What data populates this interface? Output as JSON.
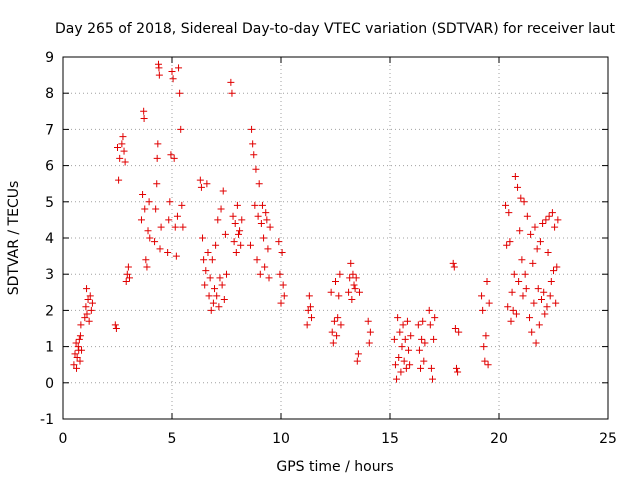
{
  "chart_data": {
    "type": "scatter",
    "title": "Day 265 of 2018, Sidereal Day-to-day VTEC variation (SDTVAR) for receiver laut",
    "xlabel": "GPS time / hours",
    "ylabel": "SDTVAR / TECUs",
    "xlim": [
      0,
      25
    ],
    "ylim": [
      -1,
      9
    ],
    "xticks": [
      0,
      5,
      10,
      15,
      20,
      25
    ],
    "yticks": [
      -1,
      0,
      1,
      2,
      3,
      4,
      5,
      6,
      7,
      8,
      9
    ],
    "grid": true,
    "marker": "+",
    "color": "#e00000",
    "series": [
      {
        "name": "SDTVAR",
        "points": [
          [
            0.5,
            0.5
          ],
          [
            0.55,
            0.8
          ],
          [
            0.6,
            1.1
          ],
          [
            0.62,
            0.4
          ],
          [
            0.65,
            0.7
          ],
          [
            0.7,
            1.0
          ],
          [
            0.72,
            0.9
          ],
          [
            0.75,
            1.2
          ],
          [
            0.78,
            0.6
          ],
          [
            0.8,
            1.3
          ],
          [
            0.82,
            1.6
          ],
          [
            0.85,
            0.9
          ],
          [
            1.0,
            1.8
          ],
          [
            1.05,
            2.1
          ],
          [
            1.08,
            2.6
          ],
          [
            1.1,
            1.9
          ],
          [
            1.15,
            2.3
          ],
          [
            1.2,
            1.7
          ],
          [
            1.25,
            2.4
          ],
          [
            1.3,
            2.0
          ],
          [
            1.35,
            2.2
          ],
          [
            2.4,
            1.6
          ],
          [
            2.45,
            1.5
          ],
          [
            2.5,
            6.5
          ],
          [
            2.55,
            5.6
          ],
          [
            2.6,
            6.2
          ],
          [
            2.7,
            6.6
          ],
          [
            2.75,
            6.8
          ],
          [
            2.8,
            6.4
          ],
          [
            2.85,
            6.1
          ],
          [
            2.9,
            2.8
          ],
          [
            2.95,
            3.0
          ],
          [
            3.0,
            3.2
          ],
          [
            3.05,
            2.9
          ],
          [
            3.6,
            4.5
          ],
          [
            3.65,
            5.2
          ],
          [
            3.7,
            7.5
          ],
          [
            3.72,
            7.3
          ],
          [
            3.75,
            4.8
          ],
          [
            3.8,
            3.4
          ],
          [
            3.85,
            3.2
          ],
          [
            3.9,
            4.2
          ],
          [
            3.95,
            5.0
          ],
          [
            3.98,
            4.0
          ],
          [
            4.2,
            3.9
          ],
          [
            4.25,
            4.8
          ],
          [
            4.3,
            5.5
          ],
          [
            4.32,
            6.2
          ],
          [
            4.35,
            6.6
          ],
          [
            4.38,
            8.8
          ],
          [
            4.4,
            8.7
          ],
          [
            4.42,
            8.5
          ],
          [
            4.45,
            3.7
          ],
          [
            4.5,
            4.3
          ],
          [
            4.8,
            3.6
          ],
          [
            4.85,
            4.5
          ],
          [
            4.9,
            5.0
          ],
          [
            4.95,
            6.3
          ],
          [
            5.0,
            8.6
          ],
          [
            5.05,
            8.4
          ],
          [
            5.1,
            6.2
          ],
          [
            5.15,
            4.3
          ],
          [
            5.2,
            3.5
          ],
          [
            5.25,
            4.6
          ],
          [
            5.3,
            8.7
          ],
          [
            5.35,
            8.0
          ],
          [
            5.4,
            7.0
          ],
          [
            5.45,
            4.9
          ],
          [
            5.5,
            4.3
          ],
          [
            6.3,
            5.6
          ],
          [
            6.35,
            5.4
          ],
          [
            6.4,
            4.0
          ],
          [
            6.45,
            3.4
          ],
          [
            6.5,
            2.7
          ],
          [
            6.55,
            3.1
          ],
          [
            6.6,
            5.5
          ],
          [
            6.65,
            3.6
          ],
          [
            6.7,
            2.4
          ],
          [
            6.75,
            2.9
          ],
          [
            6.8,
            2.0
          ],
          [
            6.85,
            3.4
          ],
          [
            6.9,
            2.2
          ],
          [
            6.95,
            2.6
          ],
          [
            7.0,
            3.8
          ],
          [
            7.05,
            2.4
          ],
          [
            7.1,
            4.5
          ],
          [
            7.15,
            2.1
          ],
          [
            7.2,
            2.9
          ],
          [
            7.25,
            4.8
          ],
          [
            7.3,
            2.7
          ],
          [
            7.35,
            5.3
          ],
          [
            7.4,
            2.3
          ],
          [
            7.45,
            4.1
          ],
          [
            7.5,
            3.0
          ],
          [
            7.7,
            8.3
          ],
          [
            7.75,
            8.0
          ],
          [
            7.8,
            4.6
          ],
          [
            7.85,
            3.9
          ],
          [
            7.9,
            4.4
          ],
          [
            7.95,
            3.6
          ],
          [
            8.0,
            4.9
          ],
          [
            8.05,
            4.1
          ],
          [
            8.1,
            4.2
          ],
          [
            8.15,
            3.8
          ],
          [
            8.2,
            4.5
          ],
          [
            8.6,
            3.8
          ],
          [
            8.65,
            7.0
          ],
          [
            8.7,
            6.6
          ],
          [
            8.75,
            6.3
          ],
          [
            8.8,
            4.9
          ],
          [
            8.85,
            5.9
          ],
          [
            8.9,
            3.4
          ],
          [
            8.95,
            4.6
          ],
          [
            9.0,
            5.5
          ],
          [
            9.05,
            3.0
          ],
          [
            9.1,
            4.4
          ],
          [
            9.15,
            4.9
          ],
          [
            9.2,
            4.0
          ],
          [
            9.25,
            3.2
          ],
          [
            9.3,
            4.7
          ],
          [
            9.35,
            4.5
          ],
          [
            9.4,
            3.7
          ],
          [
            9.45,
            2.9
          ],
          [
            9.5,
            4.3
          ],
          [
            9.9,
            3.9
          ],
          [
            9.95,
            3.0
          ],
          [
            10.0,
            2.2
          ],
          [
            10.05,
            3.6
          ],
          [
            10.1,
            2.7
          ],
          [
            10.15,
            2.4
          ],
          [
            11.2,
            1.6
          ],
          [
            11.25,
            2.0
          ],
          [
            11.3,
            2.4
          ],
          [
            11.35,
            2.1
          ],
          [
            11.4,
            1.8
          ],
          [
            12.3,
            2.5
          ],
          [
            12.35,
            1.4
          ],
          [
            12.4,
            1.1
          ],
          [
            12.45,
            1.7
          ],
          [
            12.5,
            2.8
          ],
          [
            12.55,
            1.3
          ],
          [
            12.6,
            1.8
          ],
          [
            12.65,
            2.4
          ],
          [
            12.7,
            3.0
          ],
          [
            12.75,
            1.6
          ],
          [
            13.1,
            2.5
          ],
          [
            13.15,
            2.9
          ],
          [
            13.2,
            3.3
          ],
          [
            13.25,
            2.3
          ],
          [
            13.3,
            3.0
          ],
          [
            13.35,
            2.7
          ],
          [
            13.4,
            2.6
          ],
          [
            13.45,
            2.9
          ],
          [
            13.5,
            0.6
          ],
          [
            13.55,
            0.8
          ],
          [
            13.6,
            2.5
          ],
          [
            14.0,
            1.7
          ],
          [
            14.05,
            1.1
          ],
          [
            14.1,
            1.4
          ],
          [
            15.2,
            1.2
          ],
          [
            15.25,
            0.5
          ],
          [
            15.3,
            0.1
          ],
          [
            15.35,
            1.8
          ],
          [
            15.4,
            0.7
          ],
          [
            15.45,
            1.4
          ],
          [
            15.5,
            0.3
          ],
          [
            15.55,
            1.0
          ],
          [
            15.6,
            1.6
          ],
          [
            15.65,
            0.6
          ],
          [
            15.7,
            1.2
          ],
          [
            15.75,
            0.4
          ],
          [
            15.8,
            1.7
          ],
          [
            15.85,
            0.9
          ],
          [
            15.9,
            0.5
          ],
          [
            15.95,
            1.3
          ],
          [
            16.3,
            1.6
          ],
          [
            16.35,
            0.9
          ],
          [
            16.4,
            0.4
          ],
          [
            16.45,
            1.2
          ],
          [
            16.5,
            1.7
          ],
          [
            16.55,
            0.6
          ],
          [
            16.6,
            1.1
          ],
          [
            16.8,
            2.0
          ],
          [
            16.85,
            1.6
          ],
          [
            16.9,
            0.4
          ],
          [
            16.95,
            0.1
          ],
          [
            17.0,
            1.2
          ],
          [
            17.05,
            1.8
          ],
          [
            17.9,
            3.3
          ],
          [
            17.95,
            3.2
          ],
          [
            18.0,
            1.5
          ],
          [
            18.05,
            0.4
          ],
          [
            18.1,
            0.3
          ],
          [
            18.15,
            1.4
          ],
          [
            19.2,
            2.4
          ],
          [
            19.25,
            2.0
          ],
          [
            19.3,
            1.0
          ],
          [
            19.35,
            0.6
          ],
          [
            19.4,
            1.3
          ],
          [
            19.45,
            2.8
          ],
          [
            19.5,
            0.5
          ],
          [
            19.55,
            2.2
          ],
          [
            20.3,
            4.9
          ],
          [
            20.35,
            3.8
          ],
          [
            20.4,
            2.1
          ],
          [
            20.45,
            4.7
          ],
          [
            20.5,
            3.9
          ],
          [
            20.55,
            1.7
          ],
          [
            20.6,
            2.5
          ],
          [
            20.65,
            2.0
          ],
          [
            20.7,
            3.0
          ],
          [
            20.75,
            5.7
          ],
          [
            20.8,
            1.9
          ],
          [
            20.85,
            5.4
          ],
          [
            20.9,
            2.8
          ],
          [
            20.95,
            4.2
          ],
          [
            21.0,
            5.1
          ],
          [
            21.05,
            3.4
          ],
          [
            21.1,
            2.4
          ],
          [
            21.15,
            5.0
          ],
          [
            21.2,
            3.0
          ],
          [
            21.25,
            2.6
          ],
          [
            21.3,
            4.6
          ],
          [
            21.4,
            1.8
          ],
          [
            21.45,
            4.1
          ],
          [
            21.5,
            1.4
          ],
          [
            21.55,
            3.3
          ],
          [
            21.6,
            2.2
          ],
          [
            21.65,
            4.3
          ],
          [
            21.7,
            1.1
          ],
          [
            21.75,
            3.7
          ],
          [
            21.8,
            2.6
          ],
          [
            21.85,
            1.6
          ],
          [
            21.9,
            3.9
          ],
          [
            21.95,
            2.3
          ],
          [
            22.0,
            4.4
          ],
          [
            22.05,
            2.5
          ],
          [
            22.1,
            1.9
          ],
          [
            22.15,
            4.5
          ],
          [
            22.2,
            2.1
          ],
          [
            22.25,
            3.6
          ],
          [
            22.3,
            4.6
          ],
          [
            22.35,
            2.4
          ],
          [
            22.4,
            2.8
          ],
          [
            22.45,
            4.7
          ],
          [
            22.5,
            3.1
          ],
          [
            22.55,
            4.3
          ],
          [
            22.6,
            2.2
          ],
          [
            22.65,
            3.2
          ],
          [
            22.7,
            4.5
          ]
        ]
      }
    ]
  }
}
